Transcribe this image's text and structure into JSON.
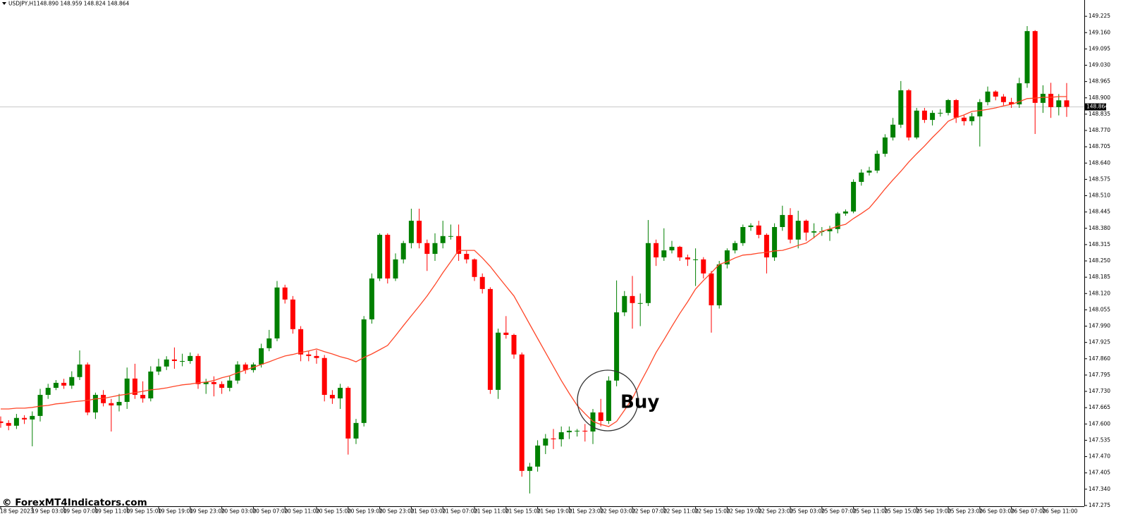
{
  "chart_data": {
    "type": "candlestick",
    "header": "USDJPY,H1",
    "quote": "148.890 148.959 148.824 148.864",
    "categories": [
      "18 Sep 2023",
      null,
      null,
      null,
      "19 Sep 03:00",
      null,
      null,
      null,
      "19 Sep 07:00",
      null,
      null,
      null,
      "19 Sep 11:00",
      null,
      null,
      null,
      "19 Sep 15:00",
      null,
      null,
      null,
      "19 Sep 19:00",
      null,
      null,
      null,
      "19 Sep 23:00",
      null,
      null,
      null,
      "20 Sep 03:00",
      null,
      null,
      null,
      "20 Sep 07:00",
      null,
      null,
      null,
      "20 Sep 11:00",
      null,
      null,
      null,
      "20 Sep 15:00",
      null,
      null,
      null,
      "20 Sep 19:00",
      null,
      null,
      null,
      "20 Sep 23:00",
      null,
      null,
      null,
      "21 Sep 03:00",
      null,
      null,
      null,
      "21 Sep 07:00",
      null,
      null,
      null,
      "21 Sep 11:00",
      null,
      null,
      null,
      "21 Sep 15:00",
      null,
      null,
      null,
      "21 Sep 19:00",
      null,
      null,
      null,
      "21 Sep 23:00",
      null,
      null,
      null,
      "22 Sep 03:00",
      null,
      null,
      null,
      "22 Sep 07:00",
      null,
      null,
      null,
      "22 Sep 11:00",
      null,
      null,
      null,
      "22 Sep 15:00",
      null,
      null,
      null,
      "22 Sep 19:00",
      null,
      null,
      null,
      "22 Sep 23:00",
      null,
      null,
      null,
      "25 Sep 03:00",
      null,
      null,
      null,
      "25 Sep 07:00",
      null,
      null,
      null,
      "25 Sep 11:00",
      null,
      null,
      null,
      "25 Sep 15:00",
      null,
      null,
      null,
      "25 Sep 19:00",
      null,
      null,
      null,
      "25 Sep 23:00",
      null,
      null,
      null,
      "26 Sep 03:00",
      null,
      null,
      null,
      "26 Sep 07:00",
      null,
      null,
      null,
      "26 Sep 11:00",
      null,
      null,
      null
    ],
    "open": [
      147.61,
      147.604,
      147.593,
      147.624,
      147.618,
      147.632,
      147.716,
      147.744,
      147.764,
      147.753,
      147.787,
      147.837,
      147.646,
      147.716,
      147.683,
      147.674,
      147.688,
      147.781,
      147.716,
      147.702,
      147.809,
      147.829,
      147.857,
      147.851,
      147.851,
      147.871,
      147.759,
      147.767,
      147.759,
      147.744,
      147.773,
      147.837,
      147.815,
      147.837,
      147.902,
      147.941,
      148.144,
      148.096,
      147.978,
      147.877,
      147.871,
      147.863,
      147.716,
      147.702,
      147.744,
      147.542,
      147.604,
      148.017,
      148.18,
      148.354,
      148.18,
      148.256,
      148.321,
      148.41,
      148.321,
      148.278,
      148.321,
      148.349,
      148.349,
      148.278,
      148.256,
      148.186,
      148.138,
      147.736,
      147.964,
      147.955,
      147.877,
      147.413,
      147.43,
      147.514,
      147.542,
      147.539,
      147.567,
      147.573,
      147.573,
      147.57,
      147.646,
      147.612,
      147.773,
      148.045,
      148.11,
      148.082,
      148.082,
      148.321,
      148.264,
      148.292,
      148.306,
      148.264,
      148.256,
      148.256,
      148.2,
      148.073,
      148.236,
      148.292,
      148.321,
      148.385,
      148.391,
      148.354,
      148.264,
      148.385,
      148.433,
      148.335,
      148.41,
      148.363,
      148.368,
      148.368,
      148.377,
      148.439,
      148.447,
      148.565,
      148.602,
      148.61,
      148.677,
      148.742,
      148.793,
      148.93,
      148.742,
      148.849,
      148.812,
      148.84,
      148.84,
      148.891,
      148.821,
      148.807,
      148.826,
      148.883,
      148.925,
      148.905,
      148.883,
      148.874,
      148.958,
      149.166,
      148.88,
      148.916,
      148.863,
      148.89
    ],
    "high": [
      147.63,
      147.615,
      147.64,
      147.635,
      147.65,
      147.74,
      147.76,
      147.775,
      147.78,
      147.81,
      147.893,
      147.845,
      147.725,
      147.735,
      147.7,
      147.72,
      147.825,
      147.84,
      147.77,
      147.83,
      147.86,
      147.87,
      147.905,
      147.88,
      147.885,
      147.88,
      147.78,
      147.79,
      147.77,
      147.79,
      147.85,
      147.845,
      147.845,
      147.92,
      147.975,
      148.17,
      148.155,
      148.11,
      147.99,
      147.89,
      147.895,
      147.875,
      147.735,
      147.76,
      147.75,
      147.62,
      148.03,
      148.2,
      148.36,
      148.36,
      148.28,
      148.33,
      148.458,
      148.458,
      148.335,
      148.36,
      148.41,
      148.395,
      148.395,
      148.29,
      148.26,
      148.2,
      148.145,
      147.98,
      148.03,
      147.96,
      147.885,
      147.445,
      147.535,
      147.56,
      147.58,
      147.59,
      147.59,
      147.58,
      147.6,
      147.66,
      147.7,
      147.79,
      148.172,
      148.13,
      148.19,
      148.12,
      148.413,
      148.335,
      148.38,
      148.33,
      148.31,
      148.275,
      148.3,
      148.265,
      148.21,
      148.25,
      148.3,
      148.33,
      148.395,
      148.4,
      148.41,
      148.36,
      148.4,
      148.47,
      148.46,
      148.45,
      148.415,
      148.4,
      148.385,
      148.39,
      148.445,
      148.455,
      148.575,
      148.615,
      148.625,
      148.69,
      148.755,
      148.82,
      148.967,
      148.935,
      148.86,
      148.86,
      148.85,
      148.855,
      148.895,
      148.895,
      148.83,
      148.84,
      148.895,
      148.945,
      148.93,
      148.915,
      148.9,
      148.98,
      149.186,
      149.17,
      148.95,
      148.96,
      148.915,
      148.959
    ],
    "low": [
      147.585,
      147.575,
      147.58,
      147.6,
      147.511,
      147.61,
      147.7,
      147.735,
      147.74,
      147.74,
      147.775,
      147.635,
      147.62,
      147.67,
      147.57,
      147.65,
      147.66,
      147.7,
      147.685,
      147.69,
      147.795,
      147.815,
      147.82,
      147.83,
      147.84,
      147.74,
      147.72,
      147.71,
      147.72,
      147.73,
      147.76,
      147.8,
      147.805,
      147.825,
      147.89,
      147.93,
      148.08,
      147.96,
      147.85,
      147.85,
      147.84,
      147.69,
      147.68,
      147.66,
      147.478,
      147.52,
      147.59,
      148.0,
      148.17,
      148.16,
      148.17,
      148.24,
      148.3,
      148.3,
      148.21,
      148.25,
      148.3,
      148.335,
      148.25,
      148.24,
      148.17,
      148.12,
      147.72,
      147.7,
      147.94,
      147.86,
      147.39,
      147.323,
      147.41,
      147.48,
      147.5,
      147.51,
      147.54,
      147.55,
      147.53,
      147.52,
      147.59,
      147.6,
      147.75,
      148.03,
      147.98,
      147.99,
      148.07,
      148.23,
      148.25,
      148.28,
      148.25,
      148.23,
      148.15,
      148.18,
      147.964,
      148.06,
      148.22,
      148.28,
      148.31,
      148.37,
      148.34,
      148.2,
      148.25,
      148.37,
      148.32,
      148.3,
      148.33,
      148.34,
      148.35,
      148.33,
      148.36,
      148.43,
      148.44,
      148.55,
      148.59,
      148.6,
      148.665,
      148.73,
      148.78,
      148.73,
      148.735,
      148.8,
      148.79,
      148.825,
      148.83,
      148.8,
      148.79,
      148.79,
      148.706,
      148.87,
      148.89,
      148.87,
      148.86,
      148.86,
      148.94,
      148.756,
      148.84,
      148.82,
      148.83,
      148.824
    ],
    "close": [
      147.604,
      147.593,
      147.624,
      147.618,
      147.632,
      147.716,
      147.744,
      147.764,
      147.753,
      147.787,
      147.837,
      147.646,
      147.716,
      147.683,
      147.674,
      147.688,
      147.781,
      147.716,
      147.702,
      147.809,
      147.829,
      147.857,
      147.851,
      147.851,
      147.871,
      147.759,
      147.767,
      147.759,
      147.744,
      147.773,
      147.837,
      147.815,
      147.837,
      147.902,
      147.941,
      148.144,
      148.096,
      147.978,
      147.877,
      147.871,
      147.863,
      147.716,
      147.702,
      147.744,
      147.542,
      147.604,
      148.017,
      148.18,
      148.354,
      148.18,
      148.256,
      148.321,
      148.41,
      148.321,
      148.278,
      148.321,
      148.349,
      148.349,
      148.278,
      148.256,
      148.186,
      148.138,
      147.736,
      147.964,
      147.955,
      147.877,
      147.413,
      147.43,
      147.514,
      147.542,
      147.539,
      147.567,
      147.573,
      147.573,
      147.57,
      147.646,
      147.612,
      147.773,
      148.045,
      148.11,
      148.082,
      148.082,
      148.321,
      148.264,
      148.292,
      148.306,
      148.264,
      148.256,
      148.256,
      148.2,
      148.073,
      148.236,
      148.292,
      148.321,
      148.385,
      148.391,
      148.354,
      148.264,
      148.385,
      148.433,
      148.335,
      148.41,
      148.363,
      148.368,
      148.368,
      148.377,
      148.439,
      148.447,
      148.565,
      148.602,
      148.61,
      148.677,
      148.742,
      148.793,
      148.93,
      148.742,
      148.849,
      148.812,
      148.84,
      148.84,
      148.891,
      148.821,
      148.807,
      148.826,
      148.883,
      148.925,
      148.905,
      148.883,
      148.874,
      148.958,
      149.166,
      148.88,
      148.916,
      148.863,
      148.89,
      148.864
    ],
    "up_color": "#008000",
    "down_color": "#ff0000",
    "ma": {
      "color": "#ff4628",
      "values": [
        147.66,
        147.66,
        147.663,
        147.663,
        147.666,
        147.671,
        147.674,
        147.68,
        147.683,
        147.688,
        147.691,
        147.694,
        147.7,
        147.702,
        147.708,
        147.714,
        147.719,
        147.725,
        147.73,
        147.736,
        147.739,
        147.744,
        147.75,
        147.756,
        147.759,
        147.764,
        147.767,
        147.773,
        147.784,
        147.792,
        147.804,
        147.815,
        147.826,
        147.837,
        147.848,
        147.86,
        147.871,
        147.877,
        147.885,
        147.891,
        147.899,
        147.888,
        147.879,
        147.868,
        147.86,
        147.848,
        147.865,
        147.879,
        147.896,
        147.913,
        147.952,
        147.992,
        148.031,
        148.07,
        148.11,
        148.155,
        148.203,
        148.247,
        148.292,
        148.292,
        148.292,
        148.262,
        148.228,
        148.188,
        148.149,
        148.11,
        148.054,
        147.997,
        147.941,
        147.885,
        147.829,
        147.773,
        147.722,
        147.674,
        147.641,
        147.61,
        147.598,
        147.59,
        147.61,
        147.655,
        147.702,
        147.764,
        147.823,
        147.885,
        147.936,
        147.989,
        148.04,
        148.087,
        148.138,
        148.172,
        148.203,
        148.236,
        148.247,
        148.262,
        148.273,
        148.276,
        148.281,
        148.284,
        148.29,
        148.292,
        148.301,
        148.312,
        148.321,
        148.343,
        148.368,
        148.377,
        148.388,
        148.396,
        148.419,
        148.439,
        148.461,
        148.498,
        148.537,
        148.573,
        148.607,
        148.644,
        148.677,
        148.708,
        148.742,
        148.773,
        148.807,
        148.821,
        148.832,
        148.846,
        148.849,
        148.854,
        148.86,
        148.868,
        148.874,
        148.885,
        148.897,
        148.899,
        148.902,
        148.902,
        148.905,
        148.905
      ]
    },
    "ylim": [
      147.272,
      149.29
    ],
    "yticks": [
      147.275,
      {
        "value": 147.34,
        "label": "147.340"
      },
      147.405,
      {
        "value": 147.47,
        "label": "147.470"
      },
      147.535,
      {
        "value": 147.6,
        "label": "147.600"
      },
      147.665,
      {
        "value": 147.73,
        "label": "147.730"
      },
      147.795,
      {
        "value": 147.86,
        "label": "147.860"
      },
      147.925,
      {
        "value": 147.99,
        "label": "147.990"
      },
      148.055,
      {
        "value": 148.12,
        "label": "148.120"
      },
      148.185,
      {
        "value": 148.25,
        "label": "148.250"
      },
      148.315,
      {
        "value": 148.38,
        "label": "148.380"
      },
      148.445,
      {
        "value": 148.51,
        "label": "148.510"
      },
      148.575,
      {
        "value": 148.64,
        "label": "148.640"
      },
      148.705,
      {
        "value": 148.77,
        "label": "148.770"
      },
      148.835,
      {
        "value": 148.9,
        "label": "148.900"
      },
      148.965,
      {
        "value": 149.03,
        "label": "149.030"
      },
      149.095,
      {
        "value": 149.16,
        "label": "149.160"
      },
      149.225
    ],
    "current_price": {
      "value": 148.864,
      "label": "148.864"
    },
    "annotation": "Buy",
    "watermark": "© ForexMT4Indicators.com"
  }
}
